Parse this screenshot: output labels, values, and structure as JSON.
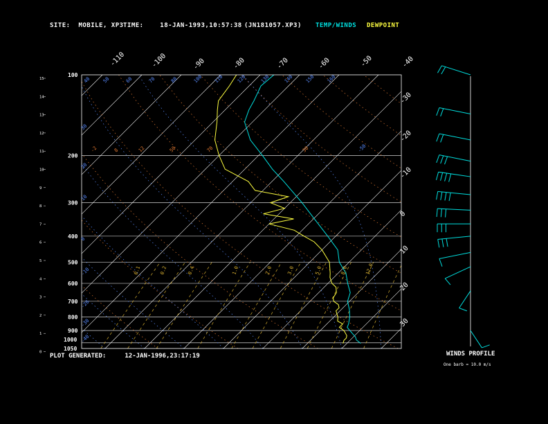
{
  "header": {
    "site_label": "SITE:",
    "site_value": "MOBILE, XP3",
    "time_label": "TIME:",
    "time_value": "18-JAN-1993,10:57:38",
    "file_id": "(JN181057.XP3)",
    "temp_legend": "TEMP/WINDS",
    "dew_legend": "DEWPOINT"
  },
  "footer": {
    "plot_label": "PLOT GENERATED:",
    "plot_value": "12-JAN-1996,23:17:19",
    "winds_title": "WINDS PROFILE",
    "winds_note": "One barb = 10.0 m/s"
  },
  "colors": {
    "background": "#000000",
    "temperature": "#00e0e0",
    "dewpoint": "#ffff40",
    "isotherms": "#ffffff",
    "isobars": "#ffffff",
    "dry_adiabats": "#e07830",
    "moist_adiabats": "#5a8cff",
    "mixing_ratio": "#d8b030",
    "wind_barbs": "#00e0e0",
    "labels": "#ffffff"
  },
  "chart_data": {
    "type": "line",
    "title": "",
    "x_axis": {
      "ticks_top": [
        "-110",
        "-100",
        "-90",
        "-80",
        "-70",
        "-60",
        "-50",
        "-40"
      ],
      "ticks_right": [
        "-30",
        "-20",
        "-10",
        "0",
        "10",
        "20",
        "30"
      ],
      "range": [
        -110,
        30
      ]
    },
    "pressure_axis": {
      "labels": [
        "100",
        "200",
        "300",
        "400",
        "500",
        "600",
        "700",
        "800",
        "900",
        "1000",
        "1050"
      ],
      "range": [
        1050,
        100
      ]
    },
    "height_axis": {
      "labels": [
        "15",
        "14",
        "13",
        "12",
        "11",
        "10",
        "9",
        "8",
        "7",
        "6",
        "5",
        "4",
        "3",
        "2",
        "1",
        "0"
      ]
    },
    "dry_adiabat_labels": [
      "-2",
      "8",
      "12",
      "50",
      "70",
      "30"
    ],
    "theta_labels": [
      "40",
      "50",
      "60",
      "70",
      "80",
      "100",
      "110",
      "120",
      "130",
      "140",
      "150",
      "160"
    ],
    "moist_labels": [
      "30",
      "20",
      "10",
      "0",
      "-10",
      "-20",
      "-30",
      "-40",
      "-50"
    ],
    "mixing_ratio_labels": [
      "0.1",
      "0.2",
      "0.4",
      "1.0",
      "2.0",
      "3.0",
      "5.0",
      "8.0",
      "12.0"
    ],
    "series": [
      {
        "name": "TEMP/WINDS",
        "points": [
          [
            1005,
            23.5
          ],
          [
            975,
            21.5
          ],
          [
            950,
            20.5
          ],
          [
            925,
            19
          ],
          [
            900,
            17.5
          ],
          [
            875,
            16
          ],
          [
            850,
            15.5
          ],
          [
            800,
            14
          ],
          [
            750,
            12
          ],
          [
            700,
            9.5
          ],
          [
            650,
            8
          ],
          [
            600,
            5
          ],
          [
            550,
            2
          ],
          [
            500,
            -2.5
          ],
          [
            450,
            -6
          ],
          [
            400,
            -12
          ],
          [
            350,
            -19
          ],
          [
            300,
            -27
          ],
          [
            250,
            -37
          ],
          [
            225,
            -43
          ],
          [
            200,
            -49
          ],
          [
            175,
            -56
          ],
          [
            150,
            -62
          ],
          [
            135,
            -64
          ],
          [
            125,
            -65
          ],
          [
            110,
            -67
          ],
          [
            100,
            -66.5
          ]
        ]
      },
      {
        "name": "DEWPOINT",
        "points": [
          [
            1005,
            19
          ],
          [
            980,
            18.5
          ],
          [
            960,
            18.5
          ],
          [
            940,
            18
          ],
          [
            900,
            16
          ],
          [
            875,
            14
          ],
          [
            850,
            14
          ],
          [
            830,
            12
          ],
          [
            800,
            11
          ],
          [
            780,
            10
          ],
          [
            760,
            9
          ],
          [
            740,
            9
          ],
          [
            720,
            8
          ],
          [
            700,
            6
          ],
          [
            680,
            5
          ],
          [
            650,
            4.5
          ],
          [
            620,
            3
          ],
          [
            600,
            1
          ],
          [
            570,
            -1
          ],
          [
            550,
            -2
          ],
          [
            500,
            -5
          ],
          [
            450,
            -10
          ],
          [
            420,
            -14
          ],
          [
            400,
            -18
          ],
          [
            380,
            -22
          ],
          [
            360,
            -30
          ],
          [
            345,
            -25
          ],
          [
            330,
            -34
          ],
          [
            315,
            -30
          ],
          [
            300,
            -35
          ],
          [
            285,
            -32
          ],
          [
            270,
            -42
          ],
          [
            250,
            -46
          ],
          [
            225,
            -55
          ],
          [
            200,
            -60
          ],
          [
            175,
            -65
          ],
          [
            150,
            -69
          ],
          [
            135,
            -72
          ],
          [
            125,
            -74
          ],
          [
            110,
            -75
          ],
          [
            100,
            -76
          ]
        ]
      }
    ],
    "wind_profile": [
      {
        "pressure": 100,
        "dir": 300,
        "spd": 15
      },
      {
        "pressure": 140,
        "dir": 290,
        "spd": 20
      },
      {
        "pressure": 175,
        "dir": 290,
        "spd": 15
      },
      {
        "pressure": 210,
        "dir": 290,
        "spd": 30
      },
      {
        "pressure": 240,
        "dir": 285,
        "spd": 35
      },
      {
        "pressure": 280,
        "dir": 280,
        "spd": 35
      },
      {
        "pressure": 320,
        "dir": 275,
        "spd": 30
      },
      {
        "pressure": 360,
        "dir": 270,
        "spd": 25
      },
      {
        "pressure": 400,
        "dir": 260,
        "spd": 25
      },
      {
        "pressure": 460,
        "dir": 250,
        "spd": 10
      },
      {
        "pressure": 520,
        "dir": 230,
        "spd": 10
      },
      {
        "pressure": 640,
        "dir": 200,
        "spd": 5
      },
      {
        "pressure": 900,
        "dir": 160,
        "spd": 5
      }
    ],
    "grid": true
  }
}
